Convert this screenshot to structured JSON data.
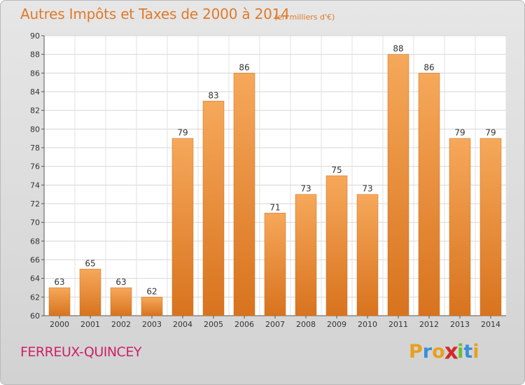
{
  "chart_data": {
    "type": "bar",
    "title": "Autres Impôts et Taxes de 2000 à 2014",
    "subtitle": "(en milliers d'€)",
    "categories": [
      "2000",
      "2001",
      "2002",
      "2003",
      "2004",
      "2005",
      "2006",
      "2007",
      "2008",
      "2009",
      "2010",
      "2011",
      "2012",
      "2013",
      "2014"
    ],
    "values": [
      63,
      65,
      63,
      62,
      79,
      83,
      86,
      71,
      73,
      75,
      73,
      88,
      86,
      79,
      79
    ],
    "ylim": [
      60,
      90
    ],
    "yticks": [
      60,
      62,
      64,
      66,
      68,
      70,
      72,
      74,
      76,
      78,
      80,
      82,
      84,
      86,
      88,
      90
    ],
    "grid": true,
    "bar_color": "#f0923a",
    "bar_color_light": "#f6a85a",
    "bar_color_dark": "#d8731e"
  },
  "commune": "FERREUX-QUINCEY",
  "logo": {
    "letters": [
      "P",
      "r",
      "o",
      "x",
      "i",
      "t",
      "i"
    ],
    "colors": [
      "#e8a020",
      "#3a8fd8",
      "#e8a020",
      "#d22a2a",
      "#6bbf2e",
      "#3a8fd8",
      "#e8a020"
    ]
  }
}
